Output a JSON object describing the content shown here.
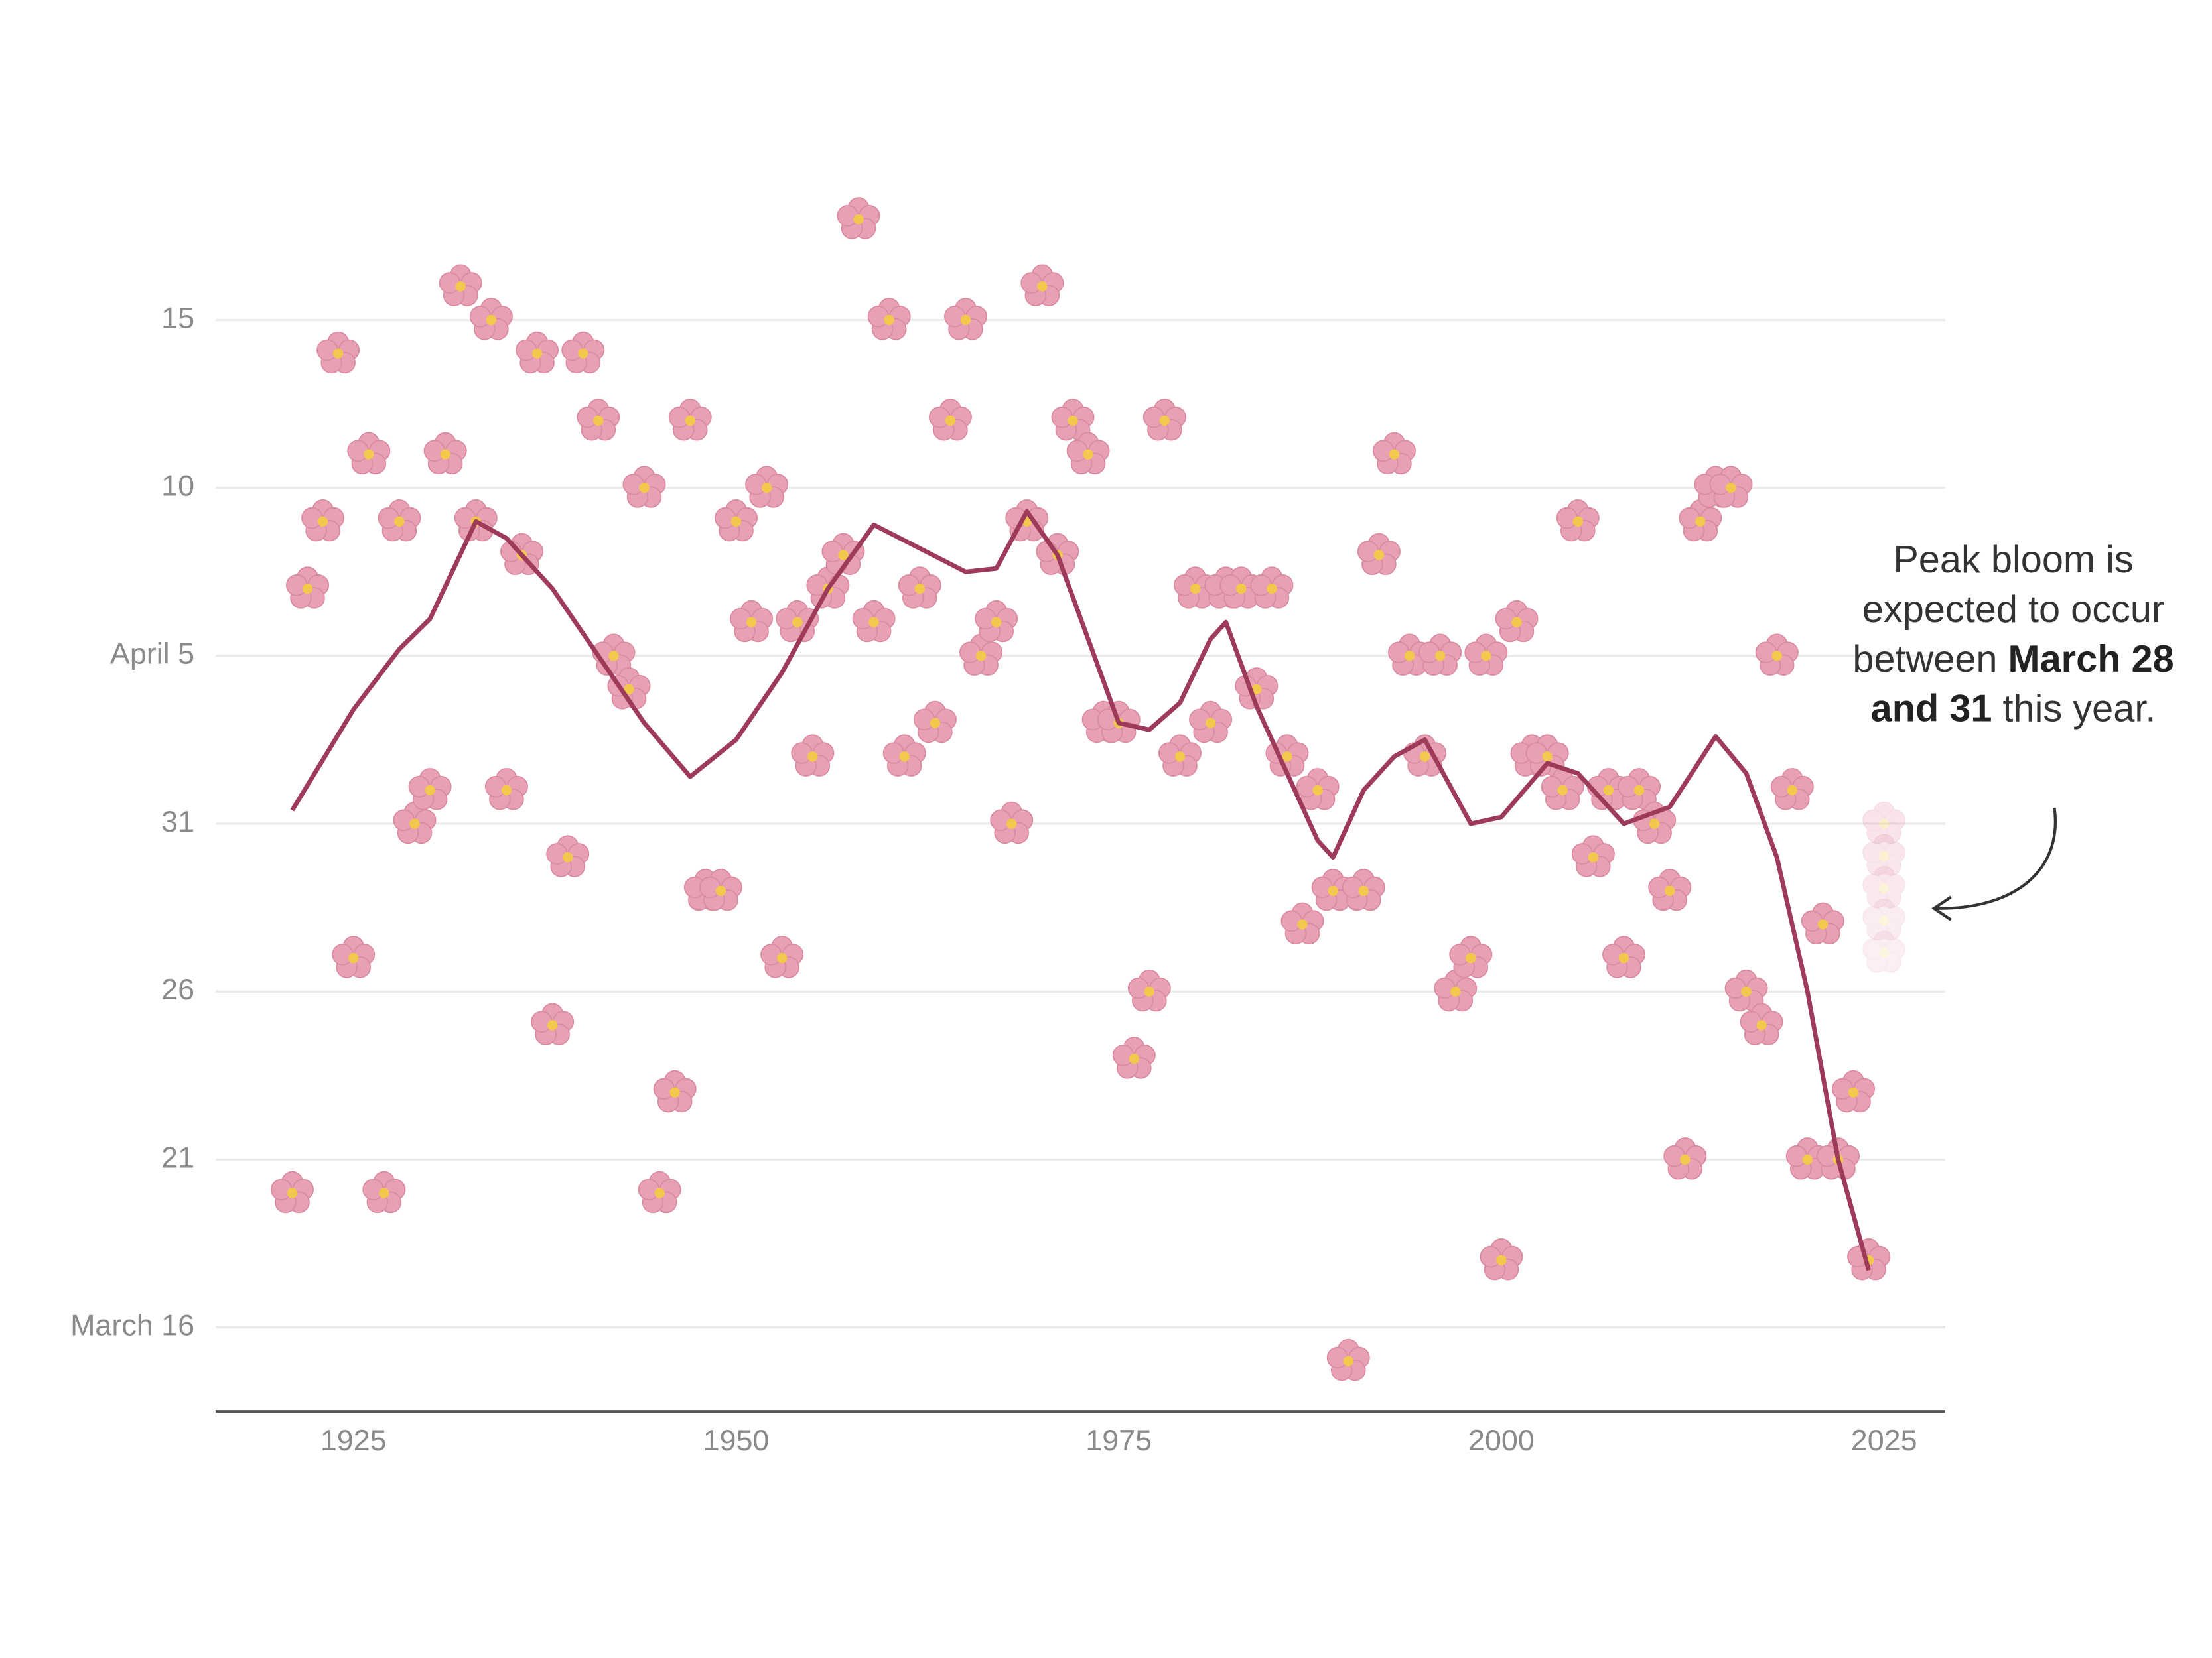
{
  "chart_data": {
    "type": "scatter",
    "color": "#e8a0b4",
    "x": [
      1921,
      1922,
      1923,
      1924,
      1925,
      1926,
      1927,
      1928,
      1929,
      1930,
      1931,
      1932,
      1933,
      1934,
      1935,
      1936,
      1937,
      1938,
      1939,
      1940,
      1941,
      1942,
      1943,
      1944,
      1945,
      1946,
      1947,
      1948,
      1949,
      1950,
      1951,
      1952,
      1953,
      1954,
      1955,
      1956,
      1957,
      1958,
      1959,
      1960,
      1961,
      1962,
      1963,
      1964,
      1965,
      1966,
      1967,
      1968,
      1969,
      1970,
      1971,
      1972,
      1973,
      1974,
      1975,
      1976,
      1977,
      1978,
      1979,
      1980,
      1981,
      1982,
      1983,
      1984,
      1985,
      1986,
      1987,
      1988,
      1989,
      1990,
      1991,
      1992,
      1993,
      1994,
      1995,
      1996,
      1997,
      1998,
      1999,
      2000,
      2001,
      2002,
      2003,
      2004,
      2005,
      2006,
      2007,
      2008,
      2009,
      2010,
      2011,
      2012,
      2013,
      2014,
      2015,
      2016,
      2017,
      2018,
      2019,
      2020,
      2021,
      2022,
      2023,
      2024
    ],
    "values": [
      20,
      38,
      40,
      45,
      27,
      42,
      20,
      40,
      31,
      32,
      42,
      47,
      40,
      46,
      32,
      39,
      45,
      25,
      30,
      45,
      43,
      36,
      35,
      41,
      20,
      23,
      43,
      29,
      29,
      40,
      37,
      41,
      27,
      37,
      33,
      38,
      39,
      49,
      37,
      46,
      33,
      38,
      34,
      43,
      46,
      36,
      37,
      31,
      40,
      47,
      39,
      43,
      42,
      34,
      34,
      24,
      26,
      43,
      33,
      38,
      34,
      38,
      38,
      35,
      38,
      33,
      28,
      32,
      29,
      15,
      29,
      39,
      42,
      36,
      33,
      36,
      26,
      27,
      36,
      18,
      37,
      33,
      33,
      32,
      40,
      30,
      32,
      27,
      32,
      31,
      29,
      21,
      40,
      41,
      41,
      26,
      25,
      36,
      32,
      21,
      28,
      21,
      23,
      18
    ],
    "trend": {
      "color": "#9e3a5a",
      "x": [
        1921,
        1925,
        1928,
        1930,
        1933,
        1935,
        1938,
        1941,
        1944,
        1947,
        1950,
        1953,
        1956,
        1959,
        1962,
        1965,
        1967,
        1969,
        1971,
        1973,
        1975,
        1977,
        1979,
        1981,
        1982,
        1984,
        1986,
        1988,
        1989,
        1991,
        1993,
        1995,
        1998,
        2000,
        2003,
        2005,
        2008,
        2011,
        2014,
        2016,
        2018,
        2020,
        2022,
        2024
      ],
      "values": [
        31.4,
        34.4,
        36.2,
        37.1,
        40,
        39.5,
        38,
        36,
        34,
        32.4,
        33.5,
        35.5,
        38,
        39.9,
        39.2,
        38.5,
        38.6,
        40.3,
        39,
        36.5,
        34,
        33.8,
        34.6,
        36.5,
        37,
        34.5,
        32.5,
        30.5,
        30,
        32,
        33,
        33.5,
        31,
        31.2,
        32.8,
        32.5,
        31,
        31.5,
        33.6,
        32.5,
        30,
        26,
        21,
        17.7
      ]
    },
    "projection": {
      "x": 2025,
      "values": [
        28,
        31
      ]
    },
    "annotation": {
      "text": "Peak bloom is expected to occur between",
      "highlight": "March 28 and 31",
      "end": "this year."
    },
    "xlim": [
      1916,
      2029
    ],
    "ylim": [
      13.5,
      50
    ],
    "xticks": [
      1925,
      1950,
      1975,
      2000,
      2025
    ],
    "yticks": [
      {
        "value": 16,
        "label": "March 16"
      },
      21,
      26,
      31,
      {
        "value": 36,
        "label": "April 5"
      },
      {
        "value": 41,
        "label": "10"
      },
      {
        "value": 46,
        "label": "15"
      }
    ],
    "grid": true
  }
}
